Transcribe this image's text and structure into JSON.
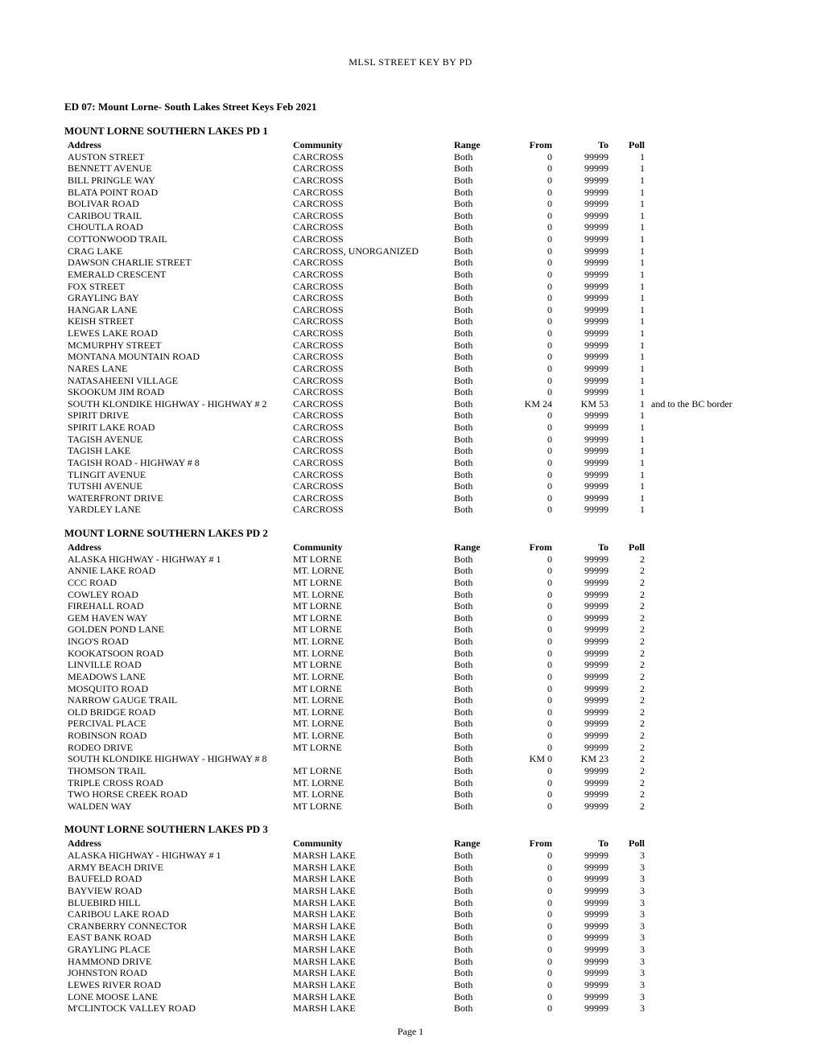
{
  "running_head": "MLSL STREET KEY BY PD",
  "doc_title": "ED 07: Mount Lorne- South Lakes Street Keys Feb 2021",
  "footer": "Page 1",
  "columns": [
    "Address",
    "Community",
    "Range",
    "From",
    "To",
    "Poll"
  ],
  "sections": [
    {
      "title": "MOUNT LORNE SOUTHERN LAKES  PD 1",
      "rows": [
        {
          "address": "AUSTON STREET",
          "community": "CARCROSS",
          "range": "Both",
          "from": "0",
          "to": "99999",
          "poll": "1"
        },
        {
          "address": "BENNETT AVENUE",
          "community": "CARCROSS",
          "range": "Both",
          "from": "0",
          "to": "99999",
          "poll": "1"
        },
        {
          "address": "BILL PRINGLE WAY",
          "community": "CARCROSS",
          "range": "Both",
          "from": "0",
          "to": "99999",
          "poll": "1"
        },
        {
          "address": "BLATA POINT ROAD",
          "community": "CARCROSS",
          "range": "Both",
          "from": "0",
          "to": "99999",
          "poll": "1"
        },
        {
          "address": "BOLIVAR ROAD",
          "community": "CARCROSS",
          "range": "Both",
          "from": "0",
          "to": "99999",
          "poll": "1"
        },
        {
          "address": "CARIBOU TRAIL",
          "community": "CARCROSS",
          "range": "Both",
          "from": "0",
          "to": "99999",
          "poll": "1"
        },
        {
          "address": "CHOUTLA ROAD",
          "community": "CARCROSS",
          "range": "Both",
          "from": "0",
          "to": "99999",
          "poll": "1"
        },
        {
          "address": "COTTONWOOD TRAIL",
          "community": "CARCROSS",
          "range": "Both",
          "from": "0",
          "to": "99999",
          "poll": "1"
        },
        {
          "address": "CRAG LAKE",
          "community": "CARCROSS, UNORGANIZED",
          "range": "Both",
          "from": "0",
          "to": "99999",
          "poll": "1"
        },
        {
          "address": "DAWSON CHARLIE STREET",
          "community": "CARCROSS",
          "range": "Both",
          "from": "0",
          "to": "99999",
          "poll": "1"
        },
        {
          "address": "EMERALD CRESCENT",
          "community": "CARCROSS",
          "range": "Both",
          "from": "0",
          "to": "99999",
          "poll": "1"
        },
        {
          "address": "FOX STREET",
          "community": "CARCROSS",
          "range": "Both",
          "from": "0",
          "to": "99999",
          "poll": "1"
        },
        {
          "address": "GRAYLING BAY",
          "community": "CARCROSS",
          "range": "Both",
          "from": "0",
          "to": "99999",
          "poll": "1"
        },
        {
          "address": "HANGAR LANE",
          "community": "CARCROSS",
          "range": "Both",
          "from": "0",
          "to": "99999",
          "poll": "1"
        },
        {
          "address": "KEISH STREET",
          "community": "CARCROSS",
          "range": "Both",
          "from": "0",
          "to": "99999",
          "poll": "1"
        },
        {
          "address": "LEWES LAKE  ROAD",
          "community": "CARCROSS",
          "range": "Both",
          "from": "0",
          "to": "99999",
          "poll": "1"
        },
        {
          "address": "MCMURPHY STREET",
          "community": "CARCROSS",
          "range": "Both",
          "from": "0",
          "to": "99999",
          "poll": "1"
        },
        {
          "address": "MONTANA MOUNTAIN ROAD",
          "community": "CARCROSS",
          "range": "Both",
          "from": "0",
          "to": "99999",
          "poll": "1"
        },
        {
          "address": "NARES LANE",
          "community": "CARCROSS",
          "range": "Both",
          "from": "0",
          "to": "99999",
          "poll": "1"
        },
        {
          "address": "NATASAHEENI VILLAGE",
          "community": "CARCROSS",
          "range": "Both",
          "from": "0",
          "to": "99999",
          "poll": "1"
        },
        {
          "address": "SKOOKUM JIM ROAD",
          "community": "CARCROSS",
          "range": "Both",
          "from": "0",
          "to": "99999",
          "poll": "1"
        },
        {
          "address": "SOUTH KLONDIKE HIGHWAY - HIGHWAY # 2",
          "community": "CARCROSS",
          "range": "Both",
          "from": "KM 24",
          "to": "KM 53",
          "poll": "1",
          "note": "and to the BC border"
        },
        {
          "address": "SPIRIT DRIVE",
          "community": "CARCROSS",
          "range": "Both",
          "from": "0",
          "to": "99999",
          "poll": "1"
        },
        {
          "address": "SPIRIT LAKE ROAD",
          "community": "CARCROSS",
          "range": "Both",
          "from": "0",
          "to": "99999",
          "poll": "1"
        },
        {
          "address": "TAGISH  AVENUE",
          "community": "CARCROSS",
          "range": "Both",
          "from": "0",
          "to": "99999",
          "poll": "1"
        },
        {
          "address": "TAGISH  LAKE",
          "community": "CARCROSS",
          "range": "Both",
          "from": "0",
          "to": "99999",
          "poll": "1"
        },
        {
          "address": "TAGISH ROAD - HIGHWAY # 8",
          "community": "CARCROSS",
          "range": "Both",
          "from": "0",
          "to": "99999",
          "poll": "1"
        },
        {
          "address": "TLINGIT AVENUE",
          "community": "CARCROSS",
          "range": "Both",
          "from": "0",
          "to": "99999",
          "poll": "1"
        },
        {
          "address": "TUTSHI  AVENUE",
          "community": "CARCROSS",
          "range": "Both",
          "from": "0",
          "to": "99999",
          "poll": "1"
        },
        {
          "address": "WATERFRONT  DRIVE",
          "community": "CARCROSS",
          "range": "Both",
          "from": "0",
          "to": "99999",
          "poll": "1"
        },
        {
          "address": "YARDLEY LANE",
          "community": "CARCROSS",
          "range": "Both",
          "from": "0",
          "to": "99999",
          "poll": "1"
        }
      ]
    },
    {
      "title": "MOUNT LORNE SOUTHERN LAKES PD 2",
      "rows": [
        {
          "address": "ALASKA  HIGHWAY - HIGHWAY # 1",
          "community": "MT LORNE",
          "range": "Both",
          "from": "0",
          "to": "99999",
          "poll": "2"
        },
        {
          "address": "ANNIE LAKE  ROAD",
          "community": "MT. LORNE",
          "range": "Both",
          "from": "0",
          "to": "99999",
          "poll": "2"
        },
        {
          "address": "CCC ROAD",
          "community": "MT LORNE",
          "range": "Both",
          "from": "0",
          "to": "99999",
          "poll": "2"
        },
        {
          "address": "COWLEY ROAD",
          "community": "MT. LORNE",
          "range": "Both",
          "from": "0",
          "to": "99999",
          "poll": "2"
        },
        {
          "address": "FIREHALL ROAD",
          "community": "MT LORNE",
          "range": "Both",
          "from": "0",
          "to": "99999",
          "poll": "2"
        },
        {
          "address": "GEM HAVEN WAY",
          "community": "MT LORNE",
          "range": "Both",
          "from": "0",
          "to": "99999",
          "poll": "2"
        },
        {
          "address": "GOLDEN POND LANE",
          "community": "MT LORNE",
          "range": "Both",
          "from": "0",
          "to": "99999",
          "poll": "2"
        },
        {
          "address": "INGO'S  ROAD",
          "community": "MT. LORNE",
          "range": "Both",
          "from": "0",
          "to": "99999",
          "poll": "2"
        },
        {
          "address": "KOOKATSOON  ROAD",
          "community": "MT. LORNE",
          "range": "Both",
          "from": "0",
          "to": "99999",
          "poll": "2"
        },
        {
          "address": "LINVILLE ROAD",
          "community": "MT LORNE",
          "range": "Both",
          "from": "0",
          "to": "99999",
          "poll": "2"
        },
        {
          "address": "MEADOWS  LANE",
          "community": "MT. LORNE",
          "range": "Both",
          "from": "0",
          "to": "99999",
          "poll": "2"
        },
        {
          "address": "MOSQUITO  ROAD",
          "community": "MT LORNE",
          "range": "Both",
          "from": "0",
          "to": "99999",
          "poll": "2"
        },
        {
          "address": "NARROW GAUGE  TRAIL",
          "community": "MT. LORNE",
          "range": "Both",
          "from": "0",
          "to": "99999",
          "poll": "2"
        },
        {
          "address": "OLD BRIDGE  ROAD",
          "community": "MT. LORNE",
          "range": "Both",
          "from": "0",
          "to": "99999",
          "poll": "2"
        },
        {
          "address": "PERCIVAL PLACE",
          "community": "MT. LORNE",
          "range": "Both",
          "from": "0",
          "to": "99999",
          "poll": "2"
        },
        {
          "address": "ROBINSON ROAD",
          "community": "MT. LORNE",
          "range": "Both",
          "from": "0",
          "to": "99999",
          "poll": "2"
        },
        {
          "address": "RODEO DRIVE",
          "community": "MT LORNE",
          "range": "Both",
          "from": "0",
          "to": "99999",
          "poll": "2"
        },
        {
          "address": "SOUTH KLONDIKE  HIGHWAY - HIGHWAY # 8",
          "community": "",
          "range": "Both",
          "from": "KM 0",
          "to": "KM 23",
          "poll": "2"
        },
        {
          "address": "THOMSON TRAIL",
          "community": "MT LORNE",
          "range": "Both",
          "from": "0",
          "to": "99999",
          "poll": "2"
        },
        {
          "address": "TRIPLE CROSS  ROAD",
          "community": "MT. LORNE",
          "range": "Both",
          "from": "0",
          "to": "99999",
          "poll": "2"
        },
        {
          "address": "TWO HORSE CREEK  ROAD",
          "community": "MT. LORNE",
          "range": "Both",
          "from": "0",
          "to": "99999",
          "poll": "2"
        },
        {
          "address": "WALDEN WAY",
          "community": "MT LORNE",
          "range": "Both",
          "from": "0",
          "to": "99999",
          "poll": "2"
        }
      ]
    },
    {
      "title": "MOUNT LORNE SOUTHERN LAKES PD 3",
      "rows": [
        {
          "address": "ALASKA  HIGHWAY - HIGHWAY # 1",
          "community": "MARSH LAKE",
          "range": "Both",
          "from": "0",
          "to": "99999",
          "poll": "3"
        },
        {
          "address": "ARMY BEACH   DRIVE",
          "community": "MARSH LAKE",
          "range": "Both",
          "from": "0",
          "to": "99999",
          "poll": "3"
        },
        {
          "address": "BAUFELD ROAD",
          "community": "MARSH LAKE",
          "range": "Both",
          "from": "0",
          "to": "99999",
          "poll": "3"
        },
        {
          "address": "BAYVIEW  ROAD",
          "community": "MARSH LAKE",
          "range": "Both",
          "from": "0",
          "to": "99999",
          "poll": "3"
        },
        {
          "address": "BLUEBIRD  HILL",
          "community": "MARSH LAKE",
          "range": "Both",
          "from": "0",
          "to": "99999",
          "poll": "3"
        },
        {
          "address": "CARIBOU  LAKE ROAD",
          "community": "MARSH LAKE",
          "range": "Both",
          "from": "0",
          "to": "99999",
          "poll": "3"
        },
        {
          "address": "CRANBERRY CONNECTOR",
          "community": "MARSH LAKE",
          "range": "Both",
          "from": "0",
          "to": "99999",
          "poll": "3"
        },
        {
          "address": "EAST BANK  ROAD",
          "community": "MARSH LAKE",
          "range": "Both",
          "from": "0",
          "to": "99999",
          "poll": "3"
        },
        {
          "address": "GRAYLING  PLACE",
          "community": "MARSH LAKE",
          "range": "Both",
          "from": "0",
          "to": "99999",
          "poll": "3"
        },
        {
          "address": "HAMMOND  DRIVE",
          "community": "MARSH LAKE",
          "range": "Both",
          "from": "0",
          "to": "99999",
          "poll": "3"
        },
        {
          "address": "JOHNSTON  ROAD",
          "community": "MARSH LAKE",
          "range": "Both",
          "from": "0",
          "to": "99999",
          "poll": "3"
        },
        {
          "address": "LEWES RIVER  ROAD",
          "community": "MARSH LAKE",
          "range": "Both",
          "from": "0",
          "to": "99999",
          "poll": "3"
        },
        {
          "address": "LONE MOOSE  LANE",
          "community": "MARSH LAKE",
          "range": "Both",
          "from": "0",
          "to": "99999",
          "poll": "3"
        },
        {
          "address": "M'CLINTOCK VALLEY  ROAD",
          "community": "MARSH LAKE",
          "range": "Both",
          "from": "0",
          "to": "99999",
          "poll": "3"
        }
      ]
    }
  ]
}
